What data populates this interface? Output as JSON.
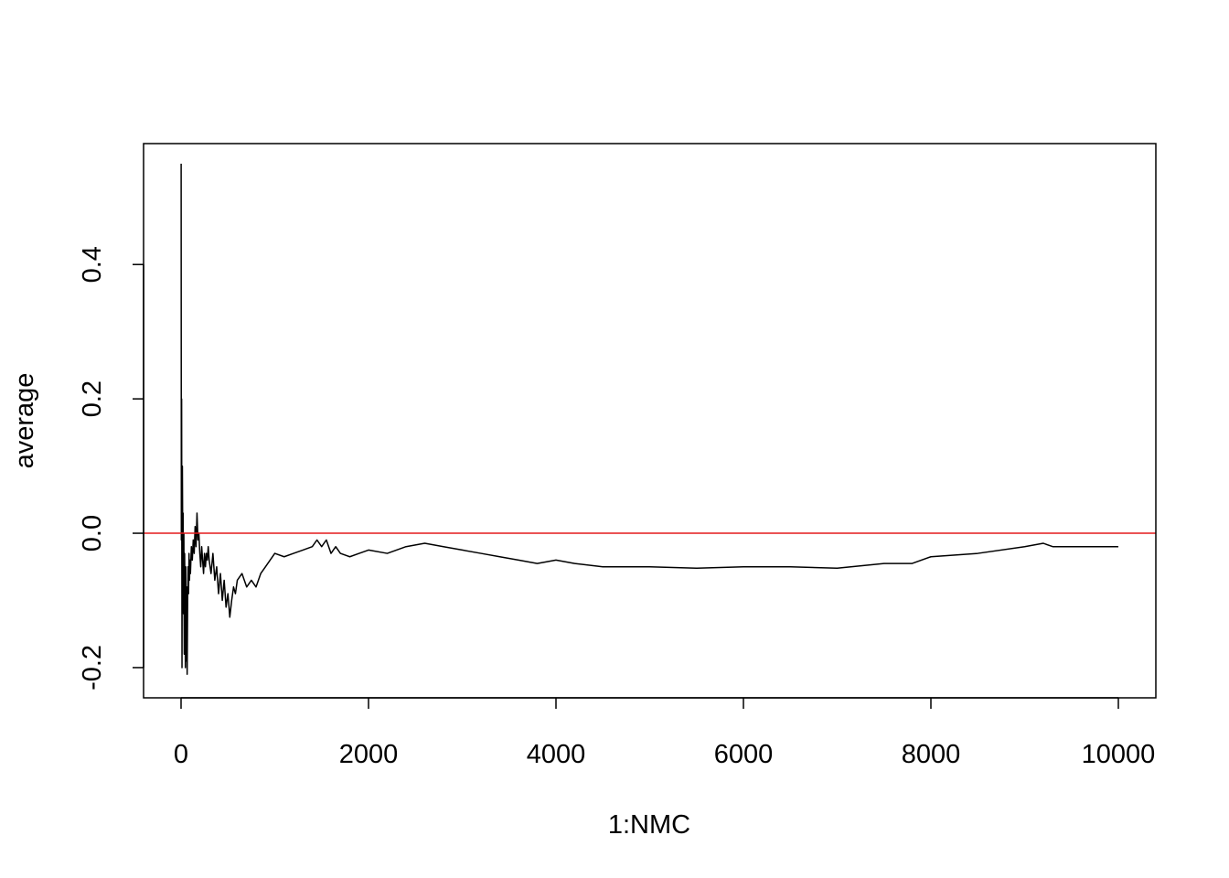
{
  "chart_data": {
    "type": "line",
    "title": "",
    "xlabel": "1:NMC",
    "ylabel": "average",
    "xlim": [
      -400,
      10400
    ],
    "ylim": [
      -0.245,
      0.58
    ],
    "x_ticks": [
      0,
      2000,
      4000,
      6000,
      8000,
      10000
    ],
    "x_tick_labels": [
      "0",
      "2000",
      "4000",
      "6000",
      "8000",
      "10000"
    ],
    "y_ticks": [
      -0.2,
      0.0,
      0.2,
      0.4
    ],
    "y_tick_labels": [
      "-0.2",
      "0.0",
      "0.2",
      "0.4"
    ],
    "grid": false,
    "legend": "none",
    "reference_line": {
      "y": 0.0,
      "color": "#e41a1c"
    },
    "series": [
      {
        "color": "#000000",
        "x": [
          1,
          3,
          6,
          10,
          14,
          18,
          22,
          26,
          30,
          34,
          38,
          42,
          46,
          50,
          55,
          60,
          65,
          70,
          75,
          80,
          85,
          90,
          95,
          100,
          110,
          120,
          130,
          140,
          150,
          160,
          170,
          180,
          190,
          200,
          210,
          220,
          230,
          240,
          250,
          260,
          270,
          280,
          290,
          300,
          320,
          340,
          360,
          380,
          400,
          420,
          440,
          460,
          480,
          500,
          520,
          540,
          560,
          580,
          600,
          650,
          700,
          750,
          800,
          850,
          900,
          950,
          1000,
          1100,
          1200,
          1300,
          1400,
          1450,
          1500,
          1550,
          1600,
          1650,
          1700,
          1800,
          1900,
          2000,
          2200,
          2400,
          2600,
          2800,
          3000,
          3200,
          3400,
          3600,
          3800,
          4000,
          4200,
          4500,
          5000,
          5500,
          6000,
          6500,
          7000,
          7500,
          7800,
          8000,
          8500,
          9000,
          9200,
          9300,
          9600,
          10000
        ],
        "y": [
          0.55,
          -0.01,
          0.2,
          -0.2,
          0.1,
          -0.01,
          0.03,
          -0.12,
          0.0,
          -0.18,
          -0.03,
          -0.09,
          -0.2,
          -0.05,
          -0.19,
          -0.08,
          -0.21,
          -0.1,
          -0.05,
          -0.09,
          -0.03,
          -0.07,
          -0.04,
          -0.06,
          -0.02,
          -0.04,
          -0.01,
          -0.03,
          0.01,
          -0.02,
          0.03,
          -0.01,
          0.0,
          -0.03,
          -0.05,
          -0.02,
          -0.04,
          -0.06,
          -0.03,
          -0.05,
          -0.03,
          -0.04,
          -0.02,
          -0.04,
          -0.06,
          -0.03,
          -0.07,
          -0.05,
          -0.09,
          -0.06,
          -0.1,
          -0.07,
          -0.11,
          -0.09,
          -0.125,
          -0.1,
          -0.08,
          -0.09,
          -0.07,
          -0.06,
          -0.08,
          -0.07,
          -0.08,
          -0.06,
          -0.05,
          -0.04,
          -0.03,
          -0.035,
          -0.03,
          -0.025,
          -0.02,
          -0.01,
          -0.02,
          -0.01,
          -0.03,
          -0.02,
          -0.03,
          -0.035,
          -0.03,
          -0.025,
          -0.03,
          -0.02,
          -0.015,
          -0.02,
          -0.025,
          -0.03,
          -0.035,
          -0.04,
          -0.045,
          -0.04,
          -0.045,
          -0.05,
          -0.05,
          -0.052,
          -0.05,
          -0.05,
          -0.052,
          -0.045,
          -0.045,
          -0.035,
          -0.03,
          -0.02,
          -0.015,
          -0.02,
          -0.02,
          -0.02
        ]
      }
    ]
  }
}
